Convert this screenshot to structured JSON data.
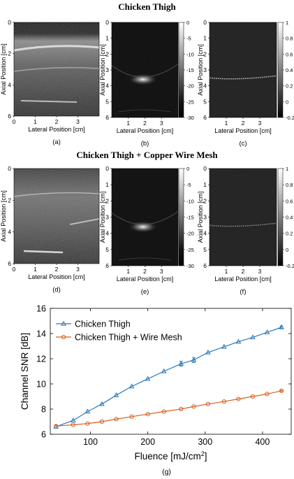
{
  "titles": {
    "top": "Chicken Thigh",
    "middle": "Chicken Thigh + Copper Wire Mesh"
  },
  "panels": [
    {
      "label": "(a)",
      "xlabel": "Lateral Position [cm]",
      "ylabel": "Axial Position [cm]",
      "xticks": [
        "0",
        "1",
        "2",
        "3"
      ],
      "yticks": [
        "0",
        "2",
        "4",
        "6"
      ]
    },
    {
      "label": "(b)",
      "xlabel": "Lateral Position [cm]",
      "ylabel": "Axial Position [cm]",
      "xticks": [
        "1",
        "2",
        "3"
      ],
      "yticks": [
        "0",
        "1",
        "2",
        "3",
        "4",
        "5",
        "6"
      ],
      "colorbar": [
        "0",
        "-5",
        "-10",
        "-15",
        "-20",
        "-25",
        "-30"
      ]
    },
    {
      "label": "(c)",
      "xlabel": "Lateral Position [cm]",
      "ylabel": "Axial Position [cm]",
      "xticks": [
        "1",
        "2",
        "3"
      ],
      "yticks": [
        "0",
        "1",
        "2",
        "3",
        "4",
        "5",
        "6"
      ],
      "colorbar": [
        "1",
        "0.8",
        "0.6",
        "0.4",
        "0.2",
        "0",
        "-0.2"
      ]
    },
    {
      "label": "(d)",
      "xlabel": "Lateral Position [cm]",
      "ylabel": "Axial Position [cm]",
      "xticks": [
        "0",
        "1",
        "2",
        "3"
      ],
      "yticks": [
        "0",
        "2",
        "4",
        "6"
      ]
    },
    {
      "label": "(e)",
      "xlabel": "Lateral Position [cm]",
      "ylabel": "Axial Position [cm]",
      "xticks": [
        "1",
        "2",
        "3"
      ],
      "yticks": [
        "0",
        "1",
        "2",
        "3",
        "4",
        "5",
        "6"
      ],
      "colorbar": [
        "0",
        "-5",
        "-10",
        "-15",
        "-20",
        "-25",
        "-30"
      ]
    },
    {
      "label": "(f)",
      "xlabel": "Lateral Position [cm]",
      "ylabel": "Axial Position [cm]",
      "xticks": [
        "1",
        "2",
        "3"
      ],
      "yticks": [
        "0",
        "1",
        "2",
        "3",
        "4",
        "5",
        "6"
      ],
      "colorbar": [
        "1",
        "0.8",
        "0.6",
        "0.4",
        "0.2",
        "0",
        "-0.2"
      ]
    }
  ],
  "chart_data": {
    "type": "line",
    "label": "(g)",
    "xlabel": "Fluence [mJ/cm",
    "xlabel_sup": "2",
    "xlabel_end": "]",
    "ylabel": "Channel SNR [dB]",
    "xlim": [
      30,
      450
    ],
    "ylim": [
      6,
      16
    ],
    "xticks": [
      100,
      200,
      300,
      400
    ],
    "yticks": [
      6,
      8,
      10,
      12,
      14,
      16
    ],
    "grid": false,
    "legend_position": "top-left",
    "series": [
      {
        "name": "Chicken Thigh",
        "color": "#2a7ab8",
        "marker": "triangle",
        "x": [
          40,
          70,
          95,
          120,
          145,
          172,
          200,
          228,
          258,
          280,
          305,
          333,
          358,
          383,
          408,
          433
        ],
        "y": [
          6.6,
          7.1,
          7.8,
          8.4,
          9.1,
          9.8,
          10.4,
          11.0,
          11.6,
          11.9,
          12.5,
          12.95,
          13.35,
          13.7,
          14.1,
          14.5
        ],
        "err": [
          0,
          0,
          0,
          0,
          0,
          0,
          0,
          0,
          0.2,
          0.2,
          0,
          0,
          0,
          0,
          0,
          0.1
        ]
      },
      {
        "name": "Chicken Thigh + Wire Mesh",
        "color": "#d95f1e",
        "marker": "circle",
        "x": [
          40,
          70,
          95,
          120,
          145,
          172,
          200,
          228,
          258,
          280,
          305,
          333,
          358,
          383,
          408,
          433
        ],
        "y": [
          6.65,
          6.75,
          6.85,
          7.0,
          7.2,
          7.4,
          7.6,
          7.8,
          8.0,
          8.2,
          8.4,
          8.6,
          8.8,
          9.0,
          9.2,
          9.45
        ],
        "err": [
          0,
          0,
          0,
          0,
          0,
          0,
          0,
          0,
          0,
          0,
          0,
          0,
          0,
          0,
          0,
          0.05
        ]
      }
    ]
  }
}
